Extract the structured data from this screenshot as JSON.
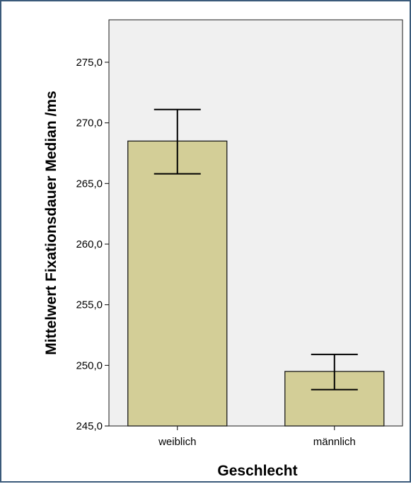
{
  "chart_data": {
    "type": "bar",
    "xlabel": "Geschlecht",
    "ylabel": "Mittelwert Fixationsdauer Median /ms",
    "categories": [
      "weiblich",
      "männlich"
    ],
    "values": [
      268.5,
      249.5
    ],
    "error_bars": [
      {
        "low": 265.8,
        "high": 271.1
      },
      {
        "low": 248.0,
        "high": 250.9
      }
    ],
    "ylim": [
      245,
      278.5
    ],
    "yticks": [
      245,
      250,
      255,
      260,
      265,
      270,
      275
    ],
    "ytick_labels": [
      "245,0",
      "250,0",
      "255,0",
      "260,0",
      "265,0",
      "270,0",
      "275,0"
    ],
    "grid": false,
    "legend": "none",
    "colors": {
      "bar_fill": "#d3ce97",
      "bar_stroke": "#1a1a1a",
      "plot_background": "#f0f0f0",
      "frame_border": "#3a5a7a"
    }
  }
}
